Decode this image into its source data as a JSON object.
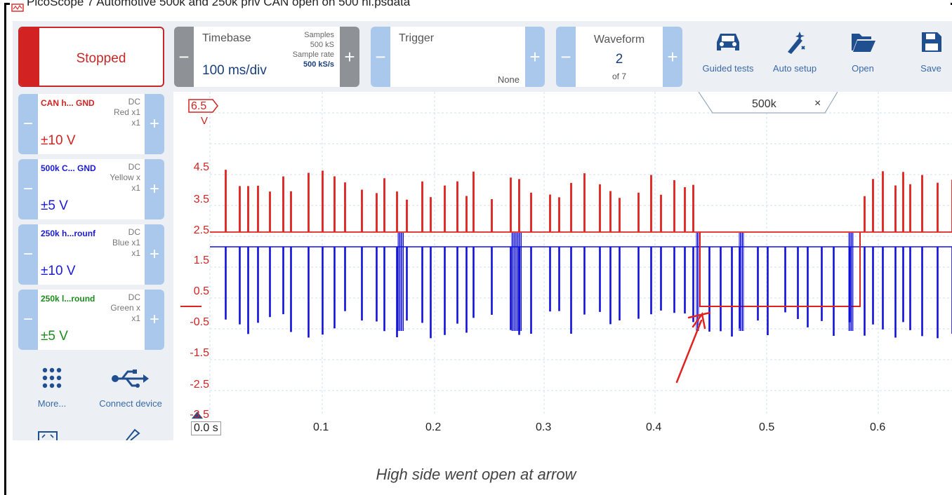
{
  "window": {
    "title": "PicoScope 7 Automotive 500k and 250k priv CAN open on 500 hi.psdata"
  },
  "toolbar": {
    "stop": {
      "label": "Stopped"
    },
    "timebase": {
      "label": "Timebase",
      "value": "100 ms/div",
      "samples_label": "Samples",
      "samples_value": "500 kS",
      "rate_label": "Sample rate",
      "rate_value": "500 kS/s"
    },
    "trigger": {
      "label": "Trigger",
      "mode": "None"
    },
    "waveform": {
      "label": "Waveform",
      "current": "2",
      "total": "of 7"
    },
    "tools": [
      {
        "label": "Guided tests",
        "icon": "car-icon"
      },
      {
        "label": "Auto setup",
        "icon": "wand-icon"
      },
      {
        "label": "Open",
        "icon": "folder-icon"
      },
      {
        "label": "Save",
        "icon": "save-icon"
      }
    ],
    "minus": "−",
    "plus": "+"
  },
  "channels": [
    {
      "name": "CAN h... GND",
      "coupling": "DC",
      "probe": "Red x1",
      "mult": "x1",
      "range": "±10 V",
      "color": "#d32222"
    },
    {
      "name": "500k C... GND",
      "coupling": "DC",
      "probe": "Yellow x",
      "mult": "x1",
      "range": "±5 V",
      "color": "#1a1ad6"
    },
    {
      "name": "250k h...rounf",
      "coupling": "DC",
      "probe": "Blue x1",
      "mult": "x1",
      "range": "±10 V",
      "color": "#1a1ad6"
    },
    {
      "name": "250k l...round",
      "coupling": "DC",
      "probe": "Green x",
      "mult": "x1",
      "range": "±5 V",
      "color": "#1e8a1e"
    }
  ],
  "bottom_tools": [
    {
      "label": "More...",
      "icon": "grid-icon"
    },
    {
      "label": "Connect device",
      "icon": "usb-icon"
    }
  ],
  "plot": {
    "tab_label": "500k",
    "tab_close": "×",
    "y_top_label": "6.5",
    "y_unit": "V",
    "y_ticks": [
      "4.5",
      "3.5",
      "2.5",
      "1.5",
      "0.5",
      "-0.5",
      "-1.5",
      "-2.5",
      "-3.5"
    ],
    "x_ticks": [
      "0.0 s",
      "0.1",
      "0.2",
      "0.3",
      "0.4",
      "0.5",
      "0.6"
    ],
    "colors": {
      "red_trace": "#e0231f",
      "blue_trace": "#1010dd",
      "annotation": "#e0231f"
    }
  },
  "caption": "High side went open at arrow"
}
